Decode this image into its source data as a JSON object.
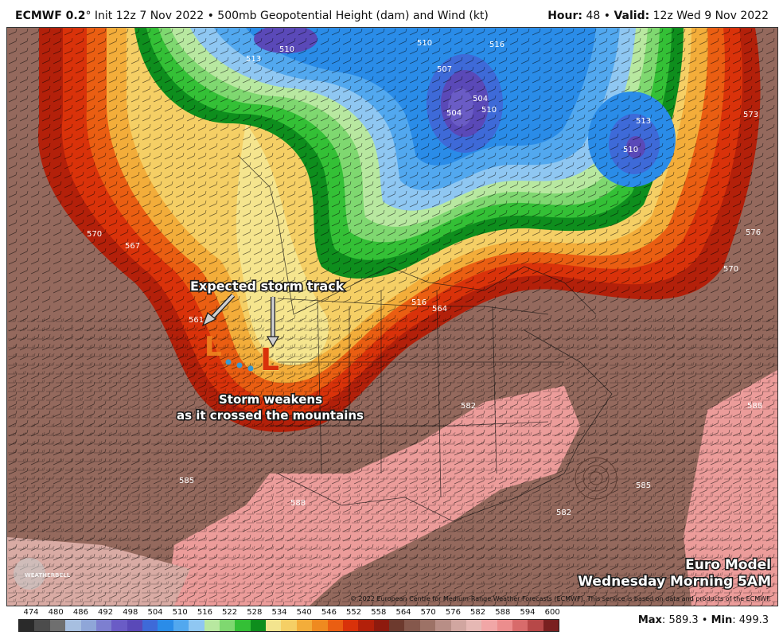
{
  "header": {
    "model": "ECMWF 0.2",
    "degree": "°",
    "init": "Init 12z 7 Nov 2022",
    "bullet": "•",
    "field": "500mb Geopotential Height (dam) and Wind (kt)",
    "hour_label": "Hour:",
    "hour_value": "48",
    "valid_label": "Valid:",
    "valid_value": "12z Wed 9 Nov 2022"
  },
  "annotations": {
    "track_title": "Expected storm track",
    "weakens_line1": "Storm weakens",
    "weakens_line2": "as it crossed the mountains",
    "low_letter": "L",
    "euro_line1": "Euro Model",
    "euro_line2": "Wednesday Morning 5AM"
  },
  "contour_labels": [
    "510",
    "513",
    "510",
    "507",
    "504",
    "516",
    "510",
    "504",
    "510",
    "513",
    "573",
    "570",
    "567",
    "561",
    "516",
    "564",
    "570",
    "576",
    "588",
    "582",
    "585",
    "582",
    "585",
    "588"
  ],
  "copyright": "© 2022 European Centre for Medium-Range Weather Forecasts (ECMWF). This service is based on data and products of the ECMWF.",
  "logo_text": "WEATHERBELL",
  "colorbar": {
    "labels": [
      "474",
      "480",
      "486",
      "492",
      "498",
      "504",
      "510",
      "516",
      "522",
      "528",
      "534",
      "540",
      "546",
      "552",
      "558",
      "564",
      "570",
      "576",
      "582",
      "588",
      "594",
      "600"
    ],
    "colors": [
      "#2a2a2a",
      "#4c4c4c",
      "#6f6f6f",
      "#a7bfe0",
      "#8fa6d8",
      "#7d7fd0",
      "#6a5cc6",
      "#5a49b8",
      "#3e6ad8",
      "#2a8ce8",
      "#52a8ef",
      "#8fc7f2",
      "#b8e8a0",
      "#7fd870",
      "#34c036",
      "#0e8e1d",
      "#f3e48e",
      "#f5cf65",
      "#f3ad3a",
      "#ef8a20",
      "#ea5e12",
      "#d9320a",
      "#b3200a",
      "#8e1a0e",
      "#6d3a2e",
      "#85584c",
      "#9d7266",
      "#b88e86",
      "#d1a6a0",
      "#e6b8b4",
      "#f1a6a6",
      "#ec8d8d",
      "#d86b6b",
      "#b74848",
      "#7a2020"
    ]
  },
  "stats": {
    "max_label": "Max",
    "max_value": "589.3",
    "min_label": "Min",
    "min_value": "499.3"
  },
  "colors": {
    "ridge_brown": "#9d7266",
    "warm_pink": "#f0a6a4",
    "trough_red": "#d9320a",
    "trough_yellow": "#f5e58e",
    "cold_blue": "#3e6ad8",
    "arrow_gray": "#c9c9c9",
    "low_red": "#d9320a",
    "low_orange": "#f08a20",
    "track_dot": "#3a9ad0"
  }
}
